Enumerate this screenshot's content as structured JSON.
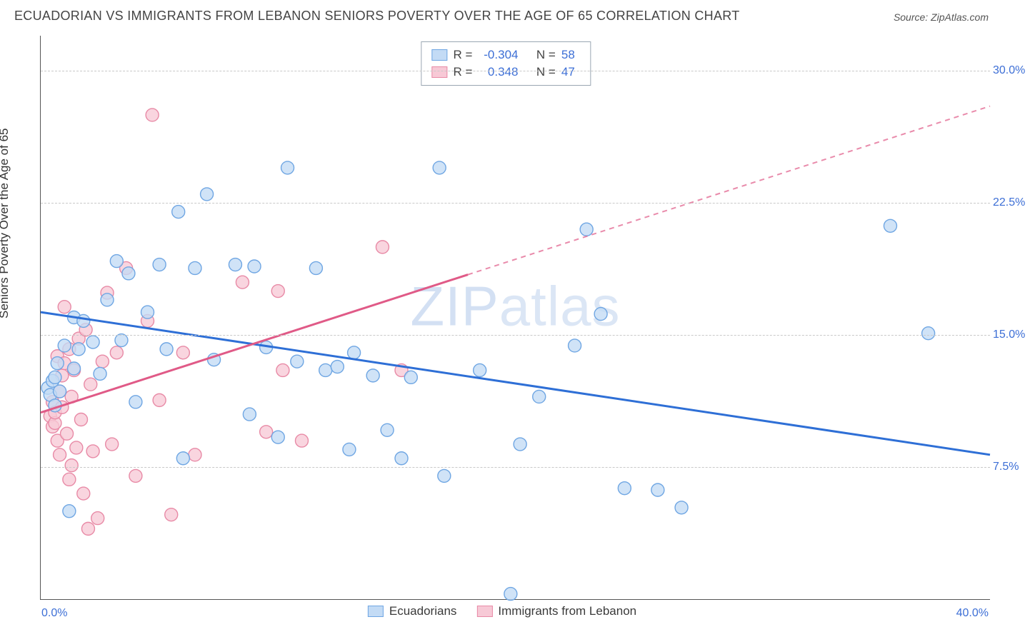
{
  "title": "ECUADORIAN VS IMMIGRANTS FROM LEBANON SENIORS POVERTY OVER THE AGE OF 65 CORRELATION CHART",
  "source": "Source: ZipAtlas.com",
  "watermark_a": "ZIP",
  "watermark_b": "atlas",
  "y_axis_title": "Seniors Poverty Over the Age of 65",
  "chart": {
    "type": "scatter",
    "xlim": [
      0,
      40
    ],
    "ylim": [
      0,
      32
    ],
    "x_ticks": {
      "min_label": "0.0%",
      "max_label": "40.0%"
    },
    "y_ticks": [
      {
        "v": 7.5,
        "label": "7.5%"
      },
      {
        "v": 15.0,
        "label": "15.0%"
      },
      {
        "v": 22.5,
        "label": "22.5%"
      },
      {
        "v": 30.0,
        "label": "30.0%"
      }
    ],
    "grid_color": "#c9c9c9",
    "background_color": "#ffffff",
    "marker_radius": 9,
    "marker_stroke_width": 1.4,
    "trend_line_width": 3,
    "trend_dash": "7,6",
    "series": [
      {
        "name": "Ecuadorians",
        "fill": "#c3dbf5",
        "stroke": "#6fa6e3",
        "line_color": "#2e6fd6",
        "R": "-0.304",
        "N": "58",
        "trend": {
          "x1": 0,
          "y1": 16.3,
          "x2": 40,
          "y2": 8.2,
          "x_solid_end": 40
        },
        "points": [
          [
            0.3,
            12.0
          ],
          [
            0.4,
            11.6
          ],
          [
            0.5,
            12.4
          ],
          [
            0.6,
            11.0
          ],
          [
            0.6,
            12.6
          ],
          [
            0.7,
            13.4
          ],
          [
            0.8,
            11.8
          ],
          [
            1.0,
            14.4
          ],
          [
            1.2,
            5.0
          ],
          [
            1.4,
            13.1
          ],
          [
            1.4,
            16.0
          ],
          [
            1.6,
            14.2
          ],
          [
            1.8,
            15.8
          ],
          [
            2.2,
            14.6
          ],
          [
            2.5,
            12.8
          ],
          [
            2.8,
            17.0
          ],
          [
            3.2,
            19.2
          ],
          [
            3.4,
            14.7
          ],
          [
            3.7,
            18.5
          ],
          [
            4.0,
            11.2
          ],
          [
            4.5,
            16.3
          ],
          [
            5.0,
            19.0
          ],
          [
            5.3,
            14.2
          ],
          [
            5.8,
            22.0
          ],
          [
            6.0,
            8.0
          ],
          [
            6.5,
            18.8
          ],
          [
            7.0,
            23.0
          ],
          [
            7.3,
            13.6
          ],
          [
            8.2,
            19.0
          ],
          [
            8.8,
            10.5
          ],
          [
            9.0,
            18.9
          ],
          [
            9.5,
            14.3
          ],
          [
            10.0,
            9.2
          ],
          [
            10.4,
            24.5
          ],
          [
            10.8,
            13.5
          ],
          [
            11.6,
            18.8
          ],
          [
            12.0,
            13.0
          ],
          [
            12.5,
            13.2
          ],
          [
            13.0,
            8.5
          ],
          [
            13.2,
            14.0
          ],
          [
            14.0,
            12.7
          ],
          [
            14.6,
            9.6
          ],
          [
            15.2,
            8.0
          ],
          [
            15.6,
            12.6
          ],
          [
            16.8,
            24.5
          ],
          [
            17.0,
            7.0
          ],
          [
            18.5,
            13.0
          ],
          [
            19.8,
            0.3
          ],
          [
            20.2,
            8.8
          ],
          [
            21.0,
            11.5
          ],
          [
            22.5,
            14.4
          ],
          [
            23.0,
            21.0
          ],
          [
            23.6,
            16.2
          ],
          [
            24.6,
            6.3
          ],
          [
            26.0,
            6.2
          ],
          [
            27.0,
            5.2
          ],
          [
            35.8,
            21.2
          ],
          [
            37.4,
            15.1
          ]
        ]
      },
      {
        "name": "Immigrants from Lebanon",
        "fill": "#f7c9d6",
        "stroke": "#e88aa6",
        "line_color": "#e05a87",
        "R": "0.348",
        "N": "47",
        "trend": {
          "x1": 0,
          "y1": 10.6,
          "x2": 40,
          "y2": 28.0,
          "x_solid_end": 18
        },
        "points": [
          [
            0.4,
            10.4
          ],
          [
            0.5,
            9.8
          ],
          [
            0.5,
            11.2
          ],
          [
            0.6,
            10.0
          ],
          [
            0.6,
            10.6
          ],
          [
            0.7,
            13.8
          ],
          [
            0.7,
            9.0
          ],
          [
            0.8,
            11.8
          ],
          [
            0.8,
            8.2
          ],
          [
            0.9,
            12.7
          ],
          [
            0.9,
            10.9
          ],
          [
            1.0,
            13.4
          ],
          [
            1.0,
            16.6
          ],
          [
            1.1,
            9.4
          ],
          [
            1.2,
            14.2
          ],
          [
            1.2,
            6.8
          ],
          [
            1.3,
            11.5
          ],
          [
            1.3,
            7.6
          ],
          [
            1.4,
            13.0
          ],
          [
            1.5,
            8.6
          ],
          [
            1.6,
            14.8
          ],
          [
            1.7,
            10.2
          ],
          [
            1.8,
            6.0
          ],
          [
            1.9,
            15.3
          ],
          [
            2.0,
            4.0
          ],
          [
            2.1,
            12.2
          ],
          [
            2.2,
            8.4
          ],
          [
            2.4,
            4.6
          ],
          [
            2.6,
            13.5
          ],
          [
            2.8,
            17.4
          ],
          [
            3.0,
            8.8
          ],
          [
            3.2,
            14.0
          ],
          [
            3.6,
            18.8
          ],
          [
            4.0,
            7.0
          ],
          [
            4.5,
            15.8
          ],
          [
            4.7,
            27.5
          ],
          [
            5.0,
            11.3
          ],
          [
            5.5,
            4.8
          ],
          [
            6.0,
            14.0
          ],
          [
            6.5,
            8.2
          ],
          [
            8.5,
            18.0
          ],
          [
            9.5,
            9.5
          ],
          [
            10.0,
            17.5
          ],
          [
            10.2,
            13.0
          ],
          [
            11.0,
            9.0
          ],
          [
            14.4,
            20.0
          ],
          [
            15.2,
            13.0
          ]
        ]
      }
    ]
  },
  "legend_top_labels": {
    "R": "R =",
    "N": "N ="
  },
  "legend_bottom": [
    {
      "swatch_fill": "#c3dbf5",
      "swatch_stroke": "#6fa6e3",
      "label": "Ecuadorians"
    },
    {
      "swatch_fill": "#f7c9d6",
      "swatch_stroke": "#e88aa6",
      "label": "Immigrants from Lebanon"
    }
  ]
}
